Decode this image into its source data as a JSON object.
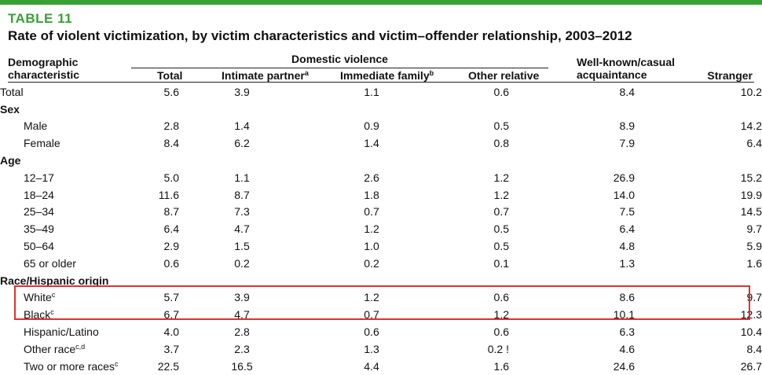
{
  "colors": {
    "accent": "#3aa035",
    "highlight": "#e03030"
  },
  "table_label": "TABLE 11",
  "title": "Rate of violent victimization, by victim characteristics and victim–offender relationship, 2003–2012",
  "headers": {
    "demographic": [
      "Demographic",
      "characteristic"
    ],
    "domestic_violence": "Domestic violence",
    "total": "Total",
    "intimate_partner": "Intimate partner",
    "intimate_partner_sup": "a",
    "immediate_family": "Immediate family",
    "immediate_family_sup": "b",
    "other_relative": "Other relative",
    "well_known": [
      "Well-known/casual",
      "acquaintance"
    ],
    "stranger": "Stranger"
  },
  "rows": [
    {
      "label": "Total",
      "type": "total",
      "values": [
        "5.6",
        "3.9",
        "1.1",
        "0.6",
        "8.4",
        "10.2"
      ]
    },
    {
      "label": "Sex",
      "type": "section"
    },
    {
      "label": "Male",
      "type": "item",
      "values": [
        "2.8",
        "1.4",
        "0.9",
        "0.5",
        "8.9",
        "14.2"
      ]
    },
    {
      "label": "Female",
      "type": "item",
      "values": [
        "8.4",
        "6.2",
        "1.4",
        "0.8",
        "7.9",
        "6.4"
      ]
    },
    {
      "label": "Age",
      "type": "section"
    },
    {
      "label": "12–17",
      "type": "item",
      "values": [
        "5.0",
        "1.1",
        "2.6",
        "1.2",
        "26.9",
        "15.2"
      ]
    },
    {
      "label": "18–24",
      "type": "item",
      "values": [
        "11.6",
        "8.7",
        "1.8",
        "1.2",
        "14.0",
        "19.9"
      ]
    },
    {
      "label": "25–34",
      "type": "item",
      "values": [
        "8.7",
        "7.3",
        "0.7",
        "0.7",
        "7.5",
        "14.5"
      ]
    },
    {
      "label": "35–49",
      "type": "item",
      "values": [
        "6.4",
        "4.7",
        "1.2",
        "0.5",
        "6.4",
        "9.7"
      ]
    },
    {
      "label": "50–64",
      "type": "item",
      "values": [
        "2.9",
        "1.5",
        "1.0",
        "0.5",
        "4.8",
        "5.9"
      ]
    },
    {
      "label": "65 or older",
      "type": "item",
      "values": [
        "0.6",
        "0.2",
        "0.2",
        "0.1",
        "1.3",
        "1.6"
      ]
    },
    {
      "label": "Race/Hispanic origin",
      "type": "section"
    },
    {
      "label": "White",
      "sup": "c",
      "type": "item",
      "values": [
        "5.7",
        "3.9",
        "1.2",
        "0.6",
        "8.6",
        "9.7"
      ]
    },
    {
      "label": "Black",
      "sup": "c",
      "type": "item",
      "values": [
        "6.7",
        "4.7",
        "0.7",
        "1.2",
        "10.1",
        "12.3"
      ]
    },
    {
      "label": "Hispanic/Latino",
      "type": "item",
      "values": [
        "4.0",
        "2.8",
        "0.6",
        "0.6",
        "6.3",
        "10.4"
      ]
    },
    {
      "label": "Other race",
      "sup": "c,d",
      "type": "item",
      "values": [
        "3.7",
        "2.3",
        "1.3",
        "0.2 !",
        "4.6",
        "8.4"
      ]
    },
    {
      "label": "Two or more races",
      "sup": "c",
      "type": "item",
      "values": [
        "22.5",
        "16.5",
        "4.4",
        "1.6",
        "24.6",
        "26.7"
      ]
    }
  ]
}
